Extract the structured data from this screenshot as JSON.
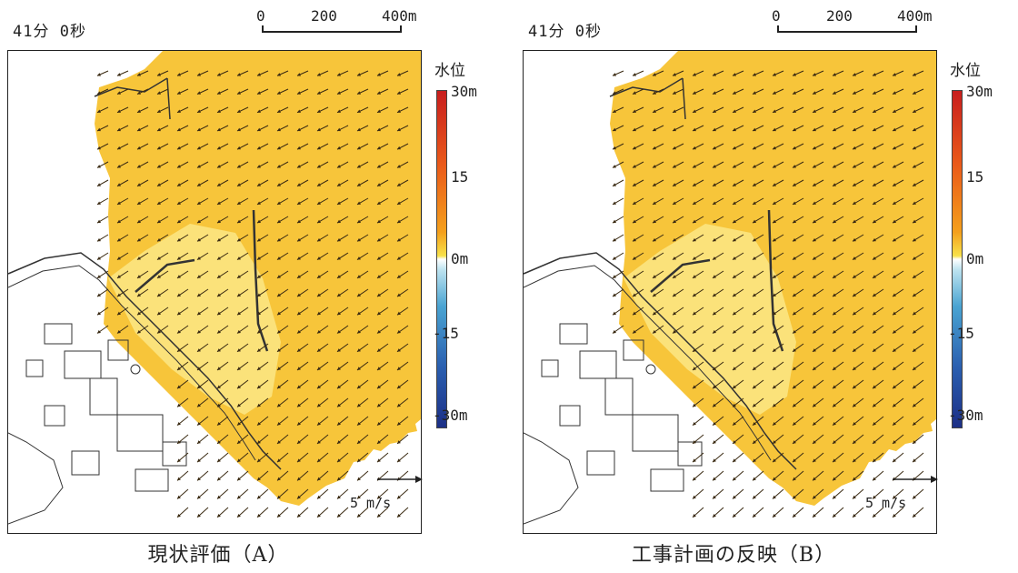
{
  "panels": [
    {
      "time_label": "41分 0秒",
      "scale_bar": {
        "labels": [
          "0",
          "200",
          "400m"
        ]
      },
      "legend": {
        "title": "水位",
        "ticks": [
          "30m",
          "15",
          "0m",
          "-15",
          "-30m"
        ]
      },
      "velocity_legend": {
        "label": "5  m/s"
      },
      "caption": "現状評価（A）"
    },
    {
      "time_label": "41分 0秒",
      "scale_bar": {
        "labels": [
          "0",
          "200",
          "400m"
        ]
      },
      "legend": {
        "title": "水位",
        "ticks": [
          "30m",
          "15",
          "0m",
          "-15",
          "-30m"
        ]
      },
      "velocity_legend": {
        "label": "5  m/s"
      },
      "caption": "工事計画の反映（B）"
    }
  ],
  "colors": {
    "water_level_high": "#c81e1e",
    "water_level_mid_high": "#f4a01c",
    "water_level_zero": "#ffffff",
    "water_level_low": "#1c2f86",
    "sea_fill": "#f7c53a",
    "arrow": "#3a2a12"
  }
}
